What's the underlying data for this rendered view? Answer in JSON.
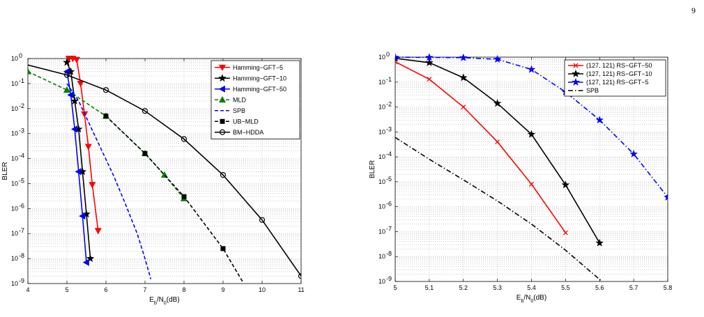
{
  "page": {
    "number": "9"
  },
  "chart_data": [
    {
      "type": "line",
      "xlabel": "E_b/N_0(dB)",
      "ylabel": "BLER",
      "xlim": [
        4,
        11
      ],
      "ylim_log10": [
        -9,
        0
      ],
      "y_scale": "log",
      "grid": true,
      "legend_position": "top-right",
      "xticks": [
        4,
        5,
        6,
        7,
        8,
        9,
        10,
        11
      ],
      "series": [
        {
          "name": "Hamming−GFT−5",
          "color": "#ff0000",
          "dash": "solid",
          "marker": "triangle-down",
          "points": [
            [
              5.05,
              1
            ],
            [
              5.15,
              1
            ],
            [
              5.25,
              0.9
            ],
            [
              5.35,
              0.1
            ],
            [
              5.45,
              0.006
            ],
            [
              5.55,
              0.0003
            ],
            [
              5.65,
              9e-06
            ],
            [
              5.8,
              1.3e-07
            ]
          ],
          "marker_points": [
            [
              5.05,
              1
            ],
            [
              5.15,
              1
            ],
            [
              5.25,
              0.9
            ],
            [
              5.35,
              0.1
            ],
            [
              5.45,
              0.006
            ],
            [
              5.55,
              0.0003
            ],
            [
              5.65,
              9e-06
            ],
            [
              5.8,
              1.3e-07
            ]
          ]
        },
        {
          "name": "Hamming−GFT−10",
          "color": "#000000",
          "dash": "solid",
          "marker": "star",
          "points": [
            [
              5.0,
              0.7
            ],
            [
              5.1,
              0.3
            ],
            [
              5.2,
              0.02
            ],
            [
              5.3,
              0.0015
            ],
            [
              5.4,
              3e-05
            ],
            [
              5.5,
              6e-07
            ],
            [
              5.6,
              1e-08
            ]
          ],
          "marker_points": [
            [
              5.0,
              0.7
            ],
            [
              5.1,
              0.3
            ],
            [
              5.2,
              0.02
            ],
            [
              5.3,
              0.0015
            ],
            [
              5.4,
              3e-05
            ],
            [
              5.5,
              6e-07
            ],
            [
              5.6,
              1e-08
            ]
          ]
        },
        {
          "name": "Hamming−GFT−50",
          "color": "#0000ff",
          "dash": "solid",
          "marker": "triangle-left",
          "points": [
            [
              5.0,
              0.3
            ],
            [
              5.1,
              0.035
            ],
            [
              5.2,
              0.0015
            ],
            [
              5.3,
              3e-05
            ],
            [
              5.4,
              5e-07
            ],
            [
              5.5,
              7e-09
            ]
          ],
          "marker_points": [
            [
              5.0,
              0.3
            ],
            [
              5.1,
              0.035
            ],
            [
              5.2,
              0.0015
            ],
            [
              5.3,
              3e-05
            ],
            [
              5.4,
              5e-07
            ],
            [
              5.5,
              7e-09
            ]
          ]
        },
        {
          "name": "MLD",
          "color": "#008000",
          "dash": "dashed",
          "marker": "triangle-up",
          "points": [
            [
              4.0,
              0.3
            ],
            [
              5.0,
              0.055
            ],
            [
              6.0,
              0.005
            ],
            [
              7.0,
              0.00016
            ],
            [
              7.5,
              2.2e-05
            ],
            [
              8.0,
              2.5e-06
            ]
          ],
          "marker_points": [
            [
              4.0,
              0.3
            ],
            [
              5.0,
              0.055
            ],
            [
              6.0,
              0.005
            ],
            [
              7.0,
              0.00016
            ],
            [
              7.5,
              2.2e-05
            ],
            [
              8.0,
              2.5e-06
            ]
          ]
        },
        {
          "name": "SPB",
          "color": "#0000ff",
          "dash": "dashed",
          "marker": "none",
          "points": [
            [
              5.0,
              0.1
            ],
            [
              5.3,
              0.02
            ],
            [
              5.6,
              0.002
            ],
            [
              5.9,
              0.0002
            ],
            [
              6.2,
              2e-05
            ],
            [
              6.5,
              1.5e-06
            ],
            [
              6.8,
              1e-07
            ],
            [
              7.0,
              1e-08
            ],
            [
              7.15,
              1.5e-09
            ]
          ],
          "marker_points": []
        },
        {
          "name": "UB−MLD",
          "color": "#000000",
          "dash": "dashed",
          "marker": "square",
          "points": [
            [
              6.0,
              0.005
            ],
            [
              7.0,
              0.00016
            ],
            [
              8.0,
              3e-06
            ],
            [
              9.0,
              2.5e-08
            ],
            [
              9.5,
              1.2e-09
            ]
          ],
          "marker_points": [
            [
              6.0,
              0.005
            ],
            [
              7.0,
              0.00016
            ],
            [
              8.0,
              3e-06
            ],
            [
              9.0,
              2.5e-08
            ]
          ]
        },
        {
          "name": "BM−HDDA",
          "color": "#000000",
          "dash": "solid",
          "marker": "circle",
          "points": [
            [
              4.0,
              0.55
            ],
            [
              5.0,
              0.22
            ],
            [
              6.0,
              0.055
            ],
            [
              7.0,
              0.008
            ],
            [
              8.0,
              0.0006
            ],
            [
              9.0,
              2.2e-05
            ],
            [
              10.0,
              3.5e-07
            ],
            [
              11.0,
              2e-09
            ]
          ],
          "marker_points": [
            [
              5.0,
              0.22
            ],
            [
              6.0,
              0.055
            ],
            [
              7.0,
              0.008
            ],
            [
              8.0,
              0.0006
            ],
            [
              9.0,
              2.2e-05
            ],
            [
              10.0,
              3.5e-07
            ],
            [
              11.0,
              2e-09
            ]
          ]
        }
      ]
    },
    {
      "type": "line",
      "xlabel": "E_b/N_0(dB)",
      "ylabel": "BLER",
      "xlim": [
        5,
        5.8
      ],
      "ylim_log10": [
        -9,
        0
      ],
      "y_scale": "log",
      "grid": true,
      "legend_position": "top-right",
      "xticks": [
        5,
        5.1,
        5.2,
        5.3,
        5.4,
        5.5,
        5.6,
        5.7,
        5.8
      ],
      "series": [
        {
          "name": "(127, 121) RS−GFT−50",
          "color": "#ff0000",
          "dash": "solid",
          "marker": "x",
          "points": [
            [
              5.0,
              0.65
            ],
            [
              5.1,
              0.13
            ],
            [
              5.2,
              0.01
            ],
            [
              5.3,
              0.0004
            ],
            [
              5.4,
              8e-06
            ],
            [
              5.5,
              9e-08
            ]
          ],
          "marker_points": [
            [
              5.0,
              0.65
            ],
            [
              5.1,
              0.13
            ],
            [
              5.2,
              0.01
            ],
            [
              5.3,
              0.0004
            ],
            [
              5.4,
              8e-06
            ],
            [
              5.5,
              9e-08
            ]
          ]
        },
        {
          "name": "(127, 121) RS−GFT−10",
          "color": "#000000",
          "dash": "solid",
          "marker": "star",
          "points": [
            [
              5.0,
              0.9
            ],
            [
              5.1,
              0.6
            ],
            [
              5.2,
              0.15
            ],
            [
              5.3,
              0.014
            ],
            [
              5.4,
              0.0008
            ],
            [
              5.5,
              7.5e-06
            ],
            [
              5.6,
              3.5e-08
            ]
          ],
          "marker_points": [
            [
              5.0,
              0.9
            ],
            [
              5.1,
              0.6
            ],
            [
              5.2,
              0.15
            ],
            [
              5.3,
              0.014
            ],
            [
              5.4,
              0.0008
            ],
            [
              5.5,
              7.5e-06
            ],
            [
              5.6,
              3.5e-08
            ]
          ]
        },
        {
          "name": "(127, 121) RS−GFT−5",
          "color": "#0000ff",
          "dash": "dashdot",
          "marker": "star",
          "points": [
            [
              5.0,
              0.99
            ],
            [
              5.1,
              0.98
            ],
            [
              5.2,
              0.95
            ],
            [
              5.3,
              0.82
            ],
            [
              5.4,
              0.32
            ],
            [
              5.5,
              0.04
            ],
            [
              5.6,
              0.003
            ],
            [
              5.7,
              0.00013
            ],
            [
              5.8,
              2.4e-06
            ]
          ],
          "marker_points": [
            [
              5.0,
              0.99
            ],
            [
              5.1,
              0.98
            ],
            [
              5.2,
              0.95
            ],
            [
              5.3,
              0.82
            ],
            [
              5.4,
              0.32
            ],
            [
              5.5,
              0.04
            ],
            [
              5.6,
              0.003
            ],
            [
              5.7,
              0.00013
            ],
            [
              5.8,
              2.4e-06
            ]
          ]
        },
        {
          "name": "SPB",
          "color": "#000000",
          "dash": "dashdot",
          "marker": "none",
          "points": [
            [
              5.0,
              0.0006
            ],
            [
              5.1,
              8e-05
            ],
            [
              5.2,
              1.2e-05
            ],
            [
              5.3,
              1.7e-06
            ],
            [
              5.4,
              2e-07
            ],
            [
              5.5,
              1.8e-08
            ],
            [
              5.6,
              1.2e-09
            ],
            [
              5.64,
              4e-10
            ]
          ],
          "marker_points": []
        }
      ]
    }
  ]
}
